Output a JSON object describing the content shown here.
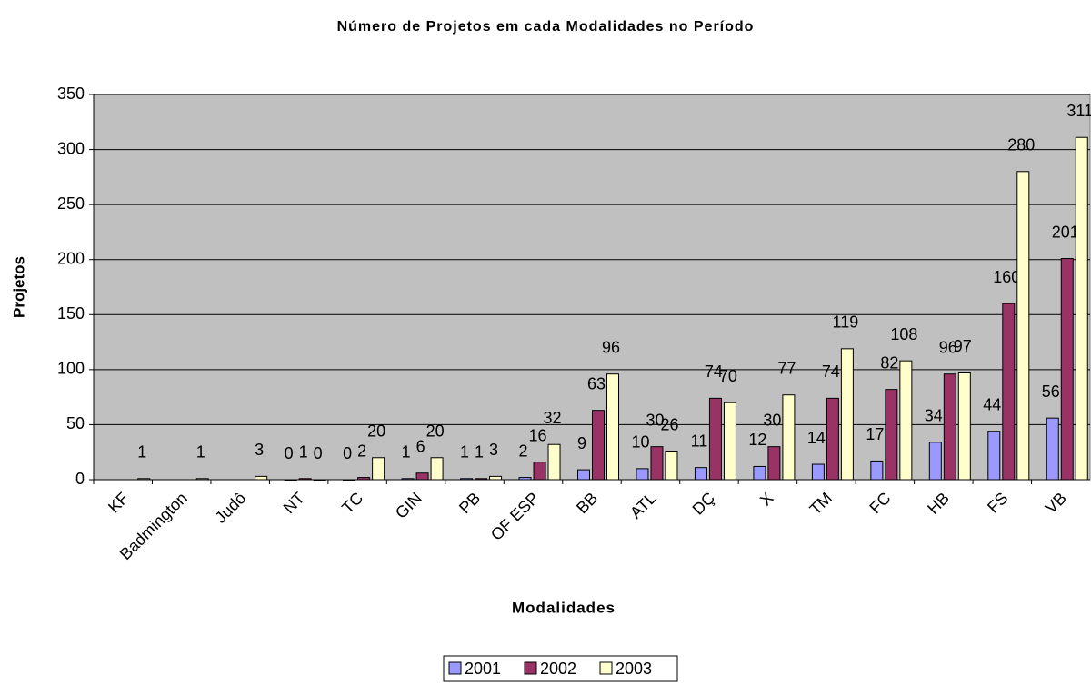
{
  "chart_data": {
    "type": "bar",
    "title": "Número de Projetos em cada Modalidades no Período",
    "x_label": "Modalidades",
    "y_label": "Projetos",
    "categories": [
      "KF",
      "Badmington",
      "Judô",
      "NT",
      "TC",
      "GIN",
      "PB",
      "OF ESP",
      "BB",
      "ATL",
      "DÇ",
      "X",
      "TM",
      "FC",
      "HB",
      "FS",
      "VB"
    ],
    "series": [
      {
        "name": "2001",
        "color": "#9999ff",
        "values": [
          null,
          null,
          null,
          0,
          0,
          1,
          1,
          2,
          9,
          10,
          11,
          12,
          14,
          17,
          34,
          44,
          56
        ]
      },
      {
        "name": "2002",
        "color": "#993366",
        "values": [
          null,
          null,
          null,
          1,
          2,
          6,
          1,
          16,
          63,
          30,
          74,
          30,
          74,
          82,
          96,
          160,
          201
        ]
      },
      {
        "name": "2003",
        "color": "#ffffcc",
        "values": [
          1,
          1,
          3,
          0,
          20,
          20,
          3,
          32,
          96,
          26,
          70,
          77,
          119,
          108,
          97,
          280,
          311
        ]
      }
    ],
    "ylim": [
      0,
      350
    ],
    "yticks": [
      0,
      50,
      100,
      150,
      200,
      250,
      300,
      350
    ],
    "grid": true,
    "legend": "bottom",
    "plot_background": "#c0c0c0"
  }
}
